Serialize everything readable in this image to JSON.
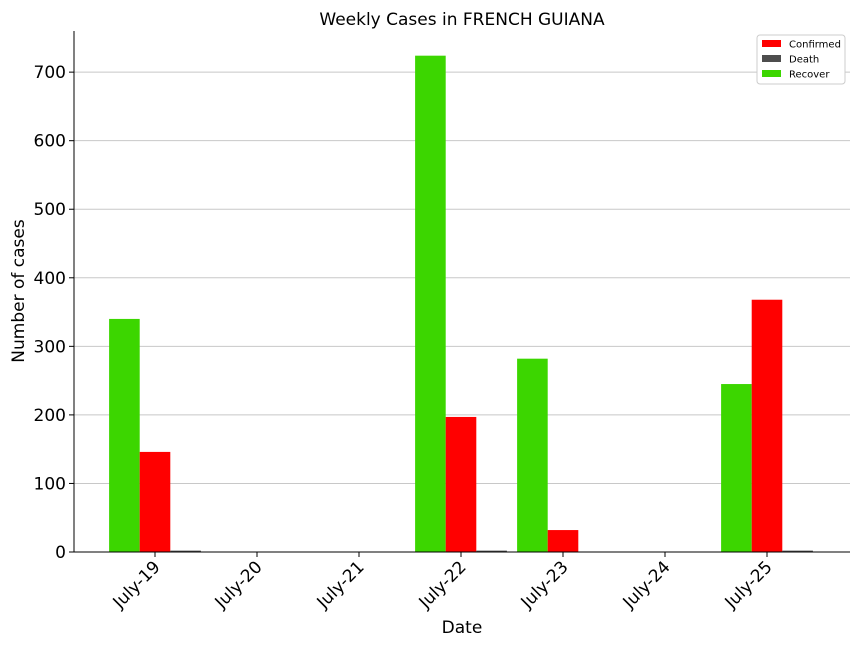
{
  "chart_data": {
    "type": "bar",
    "title": "Weekly Cases in FRENCH GUIANA",
    "xlabel": "Date",
    "ylabel": "Number of cases",
    "categories": [
      "July-19",
      "July-20",
      "July-21",
      "July-22",
      "July-23",
      "July-24",
      "July-25"
    ],
    "ylim": [
      0,
      760
    ],
    "yticks": [
      0,
      100,
      200,
      300,
      400,
      500,
      600,
      700
    ],
    "grid": "horizontal",
    "legend_position": "top-right",
    "series": [
      {
        "name": "Recover",
        "color": "#3cd600",
        "values": [
          340,
          0,
          0,
          724,
          282,
          0,
          245
        ]
      },
      {
        "name": "Confirmed",
        "color": "#ff0000",
        "values": [
          146,
          0,
          0,
          197,
          32,
          0,
          368
        ]
      },
      {
        "name": "Death",
        "color": "#4d4d4d",
        "values": [
          2,
          0,
          0,
          2,
          0,
          0,
          2
        ]
      }
    ],
    "legend_order": [
      "Confirmed",
      "Death",
      "Recover"
    ]
  }
}
